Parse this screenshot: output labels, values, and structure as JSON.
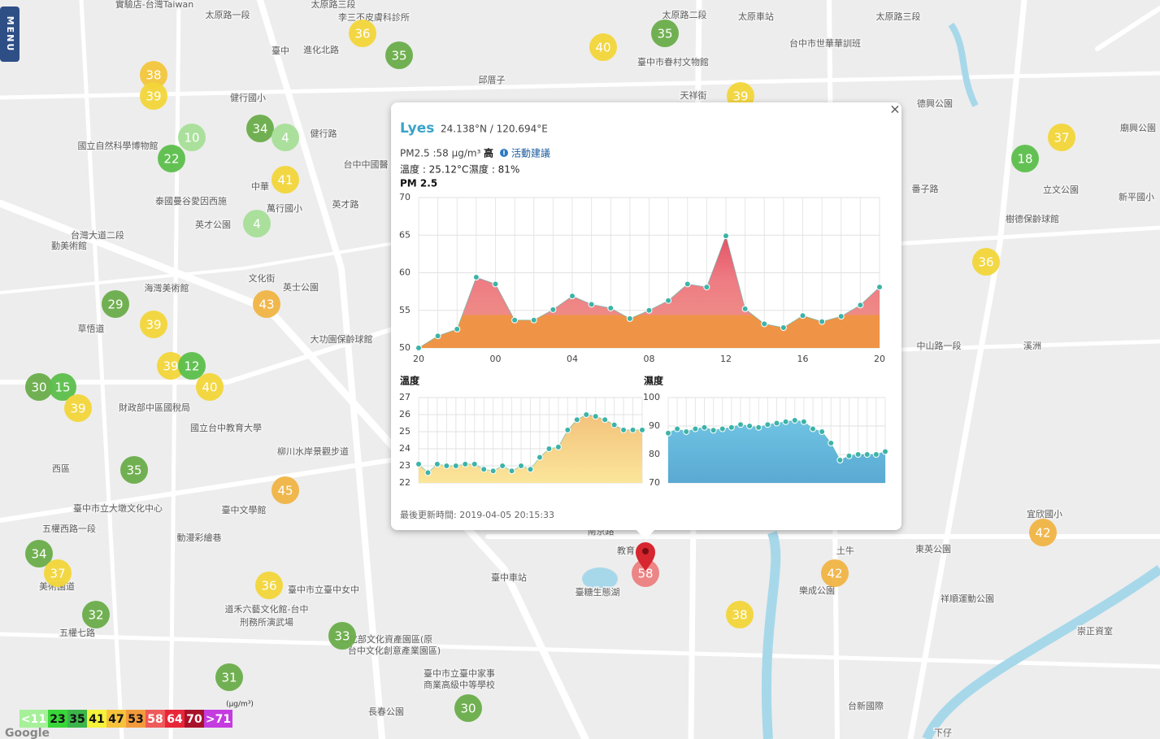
{
  "menu": "MENU",
  "map_labels": [
    "實驗店-台灣Taiwan",
    "太原路一段",
    "太原路三段",
    "李三不皮膚科診所",
    "臺中",
    "進化北路",
    "邱厝子",
    "健行國小",
    "國立自然科學博物館",
    "健行路",
    "台中中國醫",
    "泰國曼谷愛因西施",
    "中華",
    "萬行國小",
    "英才路",
    "英才公園",
    "台灣大道二段",
    "勤美術館",
    "文化街",
    "英士公園",
    "海灣美術館",
    "草悟道",
    "大功園保齡球館",
    "財政部中區國稅局",
    "國立台中教育大學",
    "柳川水岸景觀步道",
    "西區",
    "臺中市立大墩文化中心",
    "臺中文學館",
    "動漫彩繪巷",
    "五權西路一段",
    "美術園道",
    "臺中市立臺中女中",
    "道禾六藝文化館-台中",
    "刑務所演武場",
    "五權七路",
    "文化部文化資產園區(原",
    "台中文化創意產業園區)",
    "臺中市立臺中家事",
    "商業高級中等學校",
    "長春公園",
    "臺中車站",
    "臺糖生態湖",
    "南京路",
    "教育",
    "土牛",
    "樂成公園",
    "東英公園",
    "祥順運動公園",
    "宜欣國小",
    "崇正資室",
    "台新國際",
    "下仔",
    "番子路",
    "溪洲",
    "樹德保齡球館",
    "立文公園",
    "德興公園",
    "新平國小",
    "廟興公園",
    "台中市世華華訓班",
    "太原車站",
    "太原路三段",
    "太原路二段",
    "臺中市眷村文物館",
    "天祥街",
    "中山路一段"
  ],
  "markers": [
    {
      "value": "36",
      "color": "#f2d63a"
    },
    {
      "value": "35",
      "color": "#6aad4a"
    },
    {
      "value": "40",
      "color": "#f2d63a"
    },
    {
      "value": "35",
      "color": "#6aad4a"
    },
    {
      "value": "39",
      "color": "#f2d63a"
    },
    {
      "value": "38",
      "color": "#f3c63c"
    },
    {
      "value": "39",
      "color": "#f2d63a"
    },
    {
      "value": "10",
      "color": "#a6df98"
    },
    {
      "value": "34",
      "color": "#6aad4a"
    },
    {
      "value": "4",
      "color": "#a6df98"
    },
    {
      "value": "22",
      "color": "#5cbf4c"
    },
    {
      "value": "41",
      "color": "#f2d63a"
    },
    {
      "value": "4",
      "color": "#a6df98"
    },
    {
      "value": "37",
      "color": "#f2d63a"
    },
    {
      "value": "18",
      "color": "#5cbf4c"
    },
    {
      "value": "36",
      "color": "#f2d63a"
    },
    {
      "value": "29",
      "color": "#6aad4a"
    },
    {
      "value": "39",
      "color": "#f2d63a"
    },
    {
      "value": "43",
      "color": "#f0b444"
    },
    {
      "value": "39",
      "color": "#f2d63a"
    },
    {
      "value": "12",
      "color": "#5cbf4c"
    },
    {
      "value": "40",
      "color": "#f2d63a"
    },
    {
      "value": "30",
      "color": "#6aad4a"
    },
    {
      "value": "15",
      "color": "#5cbf4c"
    },
    {
      "value": "39",
      "color": "#f2d63a"
    },
    {
      "value": "35",
      "color": "#6aad4a"
    },
    {
      "value": "45",
      "color": "#f0b444"
    },
    {
      "value": "34",
      "color": "#6aad4a"
    },
    {
      "value": "37",
      "color": "#f2d63a"
    },
    {
      "value": "36",
      "color": "#f2d63a"
    },
    {
      "value": "32",
      "color": "#6aad4a"
    },
    {
      "value": "33",
      "color": "#6aad4a"
    },
    {
      "value": "31",
      "color": "#6aad4a"
    },
    {
      "value": "30",
      "color": "#6aad4a"
    },
    {
      "value": "58",
      "color": "#ec8080"
    },
    {
      "value": "42",
      "color": "#f0b444"
    },
    {
      "value": "38",
      "color": "#f2d63a"
    },
    {
      "value": "42",
      "color": "#f0b444"
    }
  ],
  "legend": {
    "unit": "(µg/m³)",
    "items": [
      {
        "label": "<11",
        "color": "#a6f09a"
      },
      {
        "label": "23",
        "color": "#39d639"
      },
      {
        "label": "35",
        "color": "#3cb64a"
      },
      {
        "label": "41",
        "color": "#f4f23a"
      },
      {
        "label": "47",
        "color": "#f6c23c"
      },
      {
        "label": "53",
        "color": "#f39b3c"
      },
      {
        "label": "58",
        "color": "#ef5a5a"
      },
      {
        "label": "64",
        "color": "#e8263a"
      },
      {
        "label": "70",
        "color": "#a8122a"
      },
      {
        "label": ">71",
        "color": "#c43be0"
      }
    ]
  },
  "attribution": "Google",
  "popup": {
    "title": "Lyes",
    "coords": "24.138°N / 120.694°E",
    "pm": "PM2.5 :58 µg/m³",
    "level": "高",
    "advice": "活動建議",
    "temperature": "溫度 : 25.12°C",
    "humidity": "濕度 : 81%",
    "updated": "最後更新時間: 2019-04-05 20:15:33",
    "close": "×"
  },
  "chart_data": [
    {
      "type": "area",
      "title": "PM 2.5",
      "categories": [
        "20",
        null,
        null,
        null,
        "00",
        null,
        null,
        null,
        "04",
        null,
        null,
        null,
        "08",
        null,
        null,
        null,
        "12",
        null,
        null,
        null,
        "16",
        null,
        null,
        null,
        "20"
      ],
      "values": [
        50,
        51.6,
        52.5,
        59.4,
        58.5,
        53.7,
        53.7,
        55.1,
        56.9,
        55.8,
        55.3,
        53.9,
        55,
        56.3,
        58.5,
        58.1,
        64.9,
        55.2,
        53.2,
        52.7,
        54.3,
        53.5,
        54.2,
        55.7,
        58.1
      ],
      "color": "#3db3a8",
      "ylim": [
        50,
        70
      ],
      "yticks": [
        50,
        55,
        60,
        65,
        70
      ],
      "grid": true
    },
    {
      "type": "area",
      "title": "溫度",
      "values": [
        23.1,
        22.6,
        23.1,
        23,
        23,
        23.1,
        23.1,
        22.8,
        22.7,
        23,
        22.7,
        23,
        22.8,
        23.5,
        24,
        24.1,
        25.1,
        25.7,
        26,
        25.9,
        25.7,
        25.4,
        25.1,
        25.1,
        25.1
      ],
      "color": "#3db3a8",
      "ylim": [
        22,
        27
      ],
      "yticks": [
        22,
        23,
        24,
        25,
        26,
        27
      ],
      "grid": true
    },
    {
      "type": "area",
      "title": "濕度",
      "values": [
        87.5,
        89,
        88,
        89,
        89.5,
        88.5,
        89,
        89.5,
        90.5,
        90,
        89.5,
        90.5,
        91,
        91.5,
        92,
        91.5,
        89,
        88,
        84,
        78,
        79.5,
        80,
        80,
        80,
        81
      ],
      "color": "#3db3a8",
      "ylim": [
        70,
        100
      ],
      "yticks": [
        70,
        80,
        90,
        100
      ],
      "grid": true
    }
  ]
}
